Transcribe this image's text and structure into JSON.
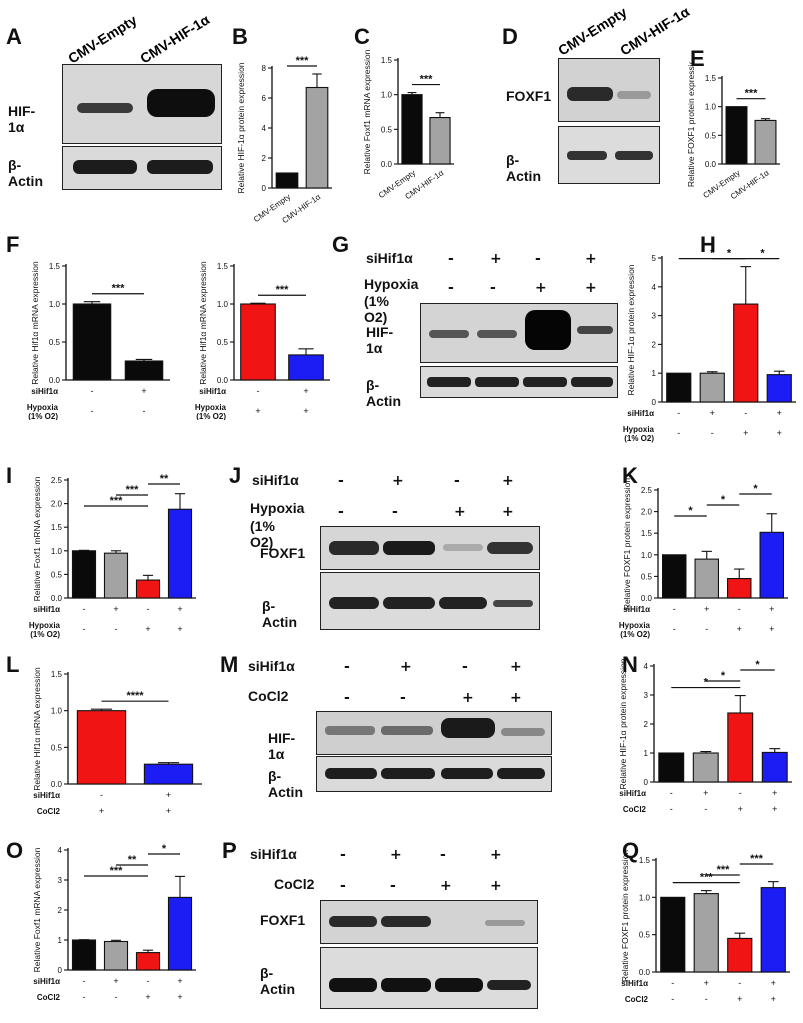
{
  "figure": {
    "panel_letters": [
      "A",
      "B",
      "C",
      "D",
      "E",
      "F",
      "G",
      "H",
      "I",
      "J",
      "K",
      "L",
      "M",
      "N",
      "O",
      "P",
      "Q"
    ],
    "colors": {
      "black": "#0a0a0a",
      "gray": "#a3a3a3",
      "red": "#f01414",
      "blue": "#1c1cf5"
    }
  },
  "blots": {
    "A": {
      "lanes": [
        "CMV-Empty",
        "CMV-HIF-1α"
      ],
      "rows": [
        "HIF-1α",
        "β-Actin"
      ]
    },
    "D": {
      "lanes": [
        "CMV-Empty",
        "CMV-HIF-1α"
      ],
      "rows": [
        "FOXF1",
        "β-Actin"
      ]
    },
    "G": {
      "cond1": "siHif1α",
      "cond2": "Hypoxia",
      "cond2b": "(1% O2)",
      "row1": "HIF-1α",
      "row2": "β-Actin",
      "signs1": [
        "-",
        "+",
        "-",
        "+"
      ],
      "signs2": [
        "-",
        "-",
        "+",
        "+"
      ]
    },
    "J": {
      "cond1": "siHif1α",
      "cond2": "Hypoxia",
      "cond2b": "(1% O2)",
      "row1": "FOXF1",
      "row2": "β-Actin",
      "signs1": [
        "-",
        "+",
        "-",
        "+"
      ],
      "signs2": [
        "-",
        "-",
        "+",
        "+"
      ]
    },
    "M": {
      "cond1": "siHif1α",
      "cond2": "CoCl2",
      "row1": "HIF-1α",
      "row2": "β-Actin",
      "signs1": [
        "-",
        "+",
        "-",
        "+"
      ],
      "signs2": [
        "-",
        "-",
        "+",
        "+"
      ]
    },
    "P": {
      "cond1": "siHif1α",
      "cond2": "CoCl2",
      "row1": "FOXF1",
      "row2": "β-Actin",
      "signs1": [
        "-",
        "+",
        "-",
        "+"
      ],
      "signs2": [
        "-",
        "-",
        "+",
        "+"
      ]
    }
  },
  "chart_data": [
    {
      "panel": "B",
      "type": "bar",
      "ylabel": "Relative HIF-1α protein expression",
      "categories": [
        "CMV-Empty",
        "CMV-HIF-1α"
      ],
      "values": [
        1.0,
        6.7
      ],
      "errors": [
        0,
        0.9
      ],
      "colors": [
        "black",
        "gray"
      ],
      "ylim": [
        0,
        8
      ],
      "yticks": [
        0,
        2,
        4,
        6,
        8
      ],
      "sig": [
        {
          "from": 0,
          "to": 1,
          "label": "***"
        }
      ]
    },
    {
      "panel": "C",
      "type": "bar",
      "ylabel": "Relative Foxf1 mRNA expression",
      "categories": [
        "CMV-Empty",
        "CMV-HIF-1α"
      ],
      "values": [
        1.0,
        0.67
      ],
      "errors": [
        0.03,
        0.07
      ],
      "colors": [
        "black",
        "gray"
      ],
      "ylim": [
        0,
        1.5
      ],
      "yticks": [
        0.0,
        0.5,
        1.0,
        1.5
      ],
      "sig": [
        {
          "from": 0,
          "to": 1,
          "label": "***"
        }
      ]
    },
    {
      "panel": "E",
      "type": "bar",
      "ylabel": "Relative FOXF1 protein expression",
      "categories": [
        "CMV-Empty",
        "CMV-HIF-1α"
      ],
      "values": [
        1.0,
        0.76
      ],
      "errors": [
        0,
        0.03
      ],
      "colors": [
        "black",
        "gray"
      ],
      "ylim": [
        0,
        1.5
      ],
      "yticks": [
        0.0,
        0.5,
        1.0,
        1.5
      ],
      "sig": [
        {
          "from": 0,
          "to": 1,
          "label": "***"
        }
      ]
    },
    {
      "panel": "F1",
      "type": "bar",
      "ylabel": "Relative Hif1α mRNA expression",
      "values": [
        1.0,
        0.25
      ],
      "errors": [
        0.03,
        0.02
      ],
      "colors": [
        "black",
        "black"
      ],
      "ylim": [
        0,
        1.5
      ],
      "yticks": [
        0.0,
        0.5,
        1.0,
        1.5
      ],
      "rows": [
        {
          "label": "siHif1α",
          "signs": [
            "-",
            "+"
          ]
        },
        {
          "label": "Hypoxia",
          "sub": "(1% O2)",
          "signs": [
            "-",
            "-"
          ]
        }
      ],
      "sig": [
        {
          "from": 0,
          "to": 1,
          "label": "***"
        }
      ]
    },
    {
      "panel": "F2",
      "type": "bar",
      "ylabel": "Relative Hif1α mRNA expression",
      "values": [
        1.0,
        0.33
      ],
      "errors": [
        0.01,
        0.08
      ],
      "colors": [
        "red",
        "blue"
      ],
      "ylim": [
        0,
        1.5
      ],
      "yticks": [
        0.0,
        0.5,
        1.0,
        1.5
      ],
      "rows": [
        {
          "label": "siHif1α",
          "signs": [
            "-",
            "+"
          ]
        },
        {
          "label": "Hypoxia",
          "sub": "(1% O2)",
          "signs": [
            "+",
            "+"
          ]
        }
      ],
      "sig": [
        {
          "from": 0,
          "to": 1,
          "label": "***"
        }
      ]
    },
    {
      "panel": "H",
      "type": "bar",
      "ylabel": "Relative HIF-1α protein expression",
      "values": [
        1.0,
        1.0,
        3.4,
        0.95
      ],
      "errors": [
        0,
        0.05,
        1.3,
        0.12
      ],
      "colors": [
        "black",
        "gray",
        "red",
        "blue"
      ],
      "ylim": [
        0,
        5
      ],
      "yticks": [
        0,
        1,
        2,
        3,
        4,
        5
      ],
      "rows": [
        {
          "label": "siHif1α",
          "signs": [
            "-",
            "+",
            "-",
            "+"
          ]
        },
        {
          "label": "Hypoxia",
          "sub": "(1% O2)",
          "signs": [
            "-",
            "-",
            "+",
            "+"
          ]
        }
      ],
      "sig": [
        {
          "from": 0,
          "to": 2,
          "label": "*"
        },
        {
          "from": 1,
          "to": 2,
          "label": "*"
        },
        {
          "from": 2,
          "to": 3,
          "label": "*"
        }
      ]
    },
    {
      "panel": "I",
      "type": "bar",
      "ylabel": "Relative Foxf1 mRNA expression",
      "values": [
        1.0,
        0.95,
        0.38,
        1.88
      ],
      "errors": [
        0.01,
        0.05,
        0.1,
        0.33
      ],
      "colors": [
        "black",
        "gray",
        "red",
        "blue"
      ],
      "ylim": [
        0,
        2.5
      ],
      "yticks": [
        0.0,
        0.5,
        1.0,
        1.5,
        2.0,
        2.5
      ],
      "rows": [
        {
          "label": "siHif1α",
          "signs": [
            "-",
            "+",
            "-",
            "+"
          ]
        },
        {
          "label": "Hypoxia",
          "sub": "(1% O2)",
          "signs": [
            "-",
            "-",
            "+",
            "+"
          ]
        }
      ],
      "sig": [
        {
          "from": 0,
          "to": 2,
          "label": "***"
        },
        {
          "from": 1,
          "to": 2,
          "label": "***"
        },
        {
          "from": 2,
          "to": 3,
          "label": "**"
        }
      ]
    },
    {
      "panel": "K",
      "type": "bar",
      "ylabel": "Relative FOXF1 protein expression",
      "values": [
        1.0,
        0.9,
        0.45,
        1.52
      ],
      "errors": [
        0,
        0.18,
        0.22,
        0.43
      ],
      "colors": [
        "black",
        "gray",
        "red",
        "blue"
      ],
      "ylim": [
        0,
        2.5
      ],
      "yticks": [
        0.0,
        0.5,
        1.0,
        1.5,
        2.0,
        2.5
      ],
      "rows": [
        {
          "label": "siHif1α",
          "signs": [
            "-",
            "+",
            "-",
            "+"
          ]
        },
        {
          "label": "Hypoxia",
          "sub": "(1% O2)",
          "signs": [
            "-",
            "-",
            "+",
            "+"
          ]
        }
      ],
      "sig": [
        {
          "from": 0,
          "to": 1,
          "label": "*"
        },
        {
          "from": 1,
          "to": 2,
          "label": "*"
        },
        {
          "from": 2,
          "to": 3,
          "label": "*"
        }
      ]
    },
    {
      "panel": "L",
      "type": "bar",
      "ylabel": "Relative Hif1α mRNA expression",
      "values": [
        1.0,
        0.27
      ],
      "errors": [
        0.02,
        0.02
      ],
      "colors": [
        "red",
        "blue"
      ],
      "ylim": [
        0,
        1.5
      ],
      "yticks": [
        0.0,
        0.5,
        1.0,
        1.5
      ],
      "rows": [
        {
          "label": "siHif1α",
          "signs": [
            "-",
            "+"
          ]
        },
        {
          "label": "CoCl2",
          "signs": [
            "+",
            "+"
          ]
        }
      ],
      "sig": [
        {
          "from": 0,
          "to": 1,
          "label": "****"
        }
      ]
    },
    {
      "panel": "N",
      "type": "bar",
      "ylabel": "Relative HIF-1α protein expression",
      "values": [
        1.0,
        1.0,
        2.38,
        1.02
      ],
      "errors": [
        0,
        0.05,
        0.6,
        0.13
      ],
      "colors": [
        "black",
        "gray",
        "red",
        "blue"
      ],
      "ylim": [
        0,
        4
      ],
      "yticks": [
        0,
        1,
        2,
        3,
        4
      ],
      "rows": [
        {
          "label": "siHif1α",
          "signs": [
            "-",
            "+",
            "-",
            "+"
          ]
        },
        {
          "label": "CoCl2",
          "signs": [
            "-",
            "-",
            "+",
            "+"
          ]
        }
      ],
      "sig": [
        {
          "from": 0,
          "to": 2,
          "label": "*"
        },
        {
          "from": 1,
          "to": 2,
          "label": "*"
        },
        {
          "from": 2,
          "to": 3,
          "label": "*"
        }
      ]
    },
    {
      "panel": "O",
      "type": "bar",
      "ylabel": "Relative Foxf1 mRNA expression",
      "values": [
        1.0,
        0.95,
        0.58,
        2.42
      ],
      "errors": [
        0.01,
        0.04,
        0.08,
        0.7
      ],
      "colors": [
        "black",
        "gray",
        "red",
        "blue"
      ],
      "ylim": [
        0,
        4
      ],
      "yticks": [
        0,
        1,
        2,
        3,
        4
      ],
      "rows": [
        {
          "label": "siHif1α",
          "signs": [
            "-",
            "+",
            "-",
            "+"
          ]
        },
        {
          "label": "CoCl2",
          "signs": [
            "-",
            "-",
            "+",
            "+"
          ]
        }
      ],
      "sig": [
        {
          "from": 0,
          "to": 2,
          "label": "***"
        },
        {
          "from": 1,
          "to": 2,
          "label": "**"
        },
        {
          "from": 2,
          "to": 3,
          "label": "*"
        }
      ]
    },
    {
      "panel": "Q",
      "type": "bar",
      "ylabel": "Relative FOXF1 protein expression",
      "values": [
        1.0,
        1.05,
        0.45,
        1.13
      ],
      "errors": [
        0,
        0.04,
        0.07,
        0.08
      ],
      "colors": [
        "black",
        "gray",
        "red",
        "blue"
      ],
      "ylim": [
        0,
        1.5
      ],
      "yticks": [
        0.0,
        0.5,
        1.0,
        1.5
      ],
      "rows": [
        {
          "label": "siHif1α",
          "signs": [
            "-",
            "+",
            "-",
            "+"
          ]
        },
        {
          "label": "CoCl2",
          "signs": [
            "-",
            "-",
            "+",
            "+"
          ]
        }
      ],
      "sig": [
        {
          "from": 0,
          "to": 2,
          "label": "***"
        },
        {
          "from": 1,
          "to": 2,
          "label": "***"
        },
        {
          "from": 2,
          "to": 3,
          "label": "***"
        }
      ]
    }
  ]
}
